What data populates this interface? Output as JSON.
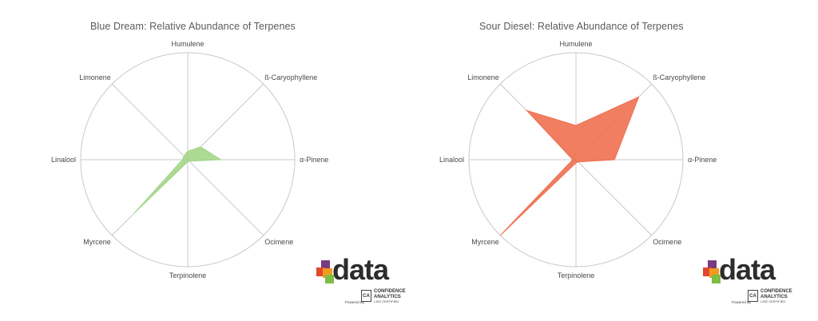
{
  "chart_data": [
    {
      "type": "radar",
      "title": "Blue Dream: Relative Abundance of Terpenes",
      "axes": [
        "Humulene",
        "ß-Caryophyllene",
        "α-Pinene",
        "Ocimene",
        "Terpinolene",
        "Myrcene",
        "Linalool",
        "Limonene"
      ],
      "values": [
        0.08,
        0.17,
        0.31,
        0.02,
        0.02,
        0.71,
        0.05,
        0.05
      ],
      "range": [
        0,
        1
      ],
      "grid": "single outer circle with spokes",
      "color": "#a4d68a"
    },
    {
      "type": "radar",
      "title": "Sour Diesel: Relative Abundance of Terpenes",
      "axes": [
        "Humulene",
        "ß-Caryophyllene",
        "α-Pinene",
        "Ocimene",
        "Terpinolene",
        "Myrcene",
        "Linalool",
        "Limonene"
      ],
      "values": [
        0.32,
        0.83,
        0.36,
        0.03,
        0.03,
        1.0,
        0.03,
        0.65
      ],
      "range": [
        0,
        1
      ],
      "grid": "single outer circle with spokes",
      "color": "#f07050"
    }
  ],
  "logo": {
    "word": "data",
    "powered_by": "Powered By",
    "company_line1": "CONFIDENCE",
    "company_line2": "ANALYTICS",
    "certification": "I-502 CERTIFIED",
    "badge": "CA",
    "colors": [
      "#e2482c",
      "#f29a1e",
      "#7a3b7f",
      "#7dbe45"
    ]
  }
}
